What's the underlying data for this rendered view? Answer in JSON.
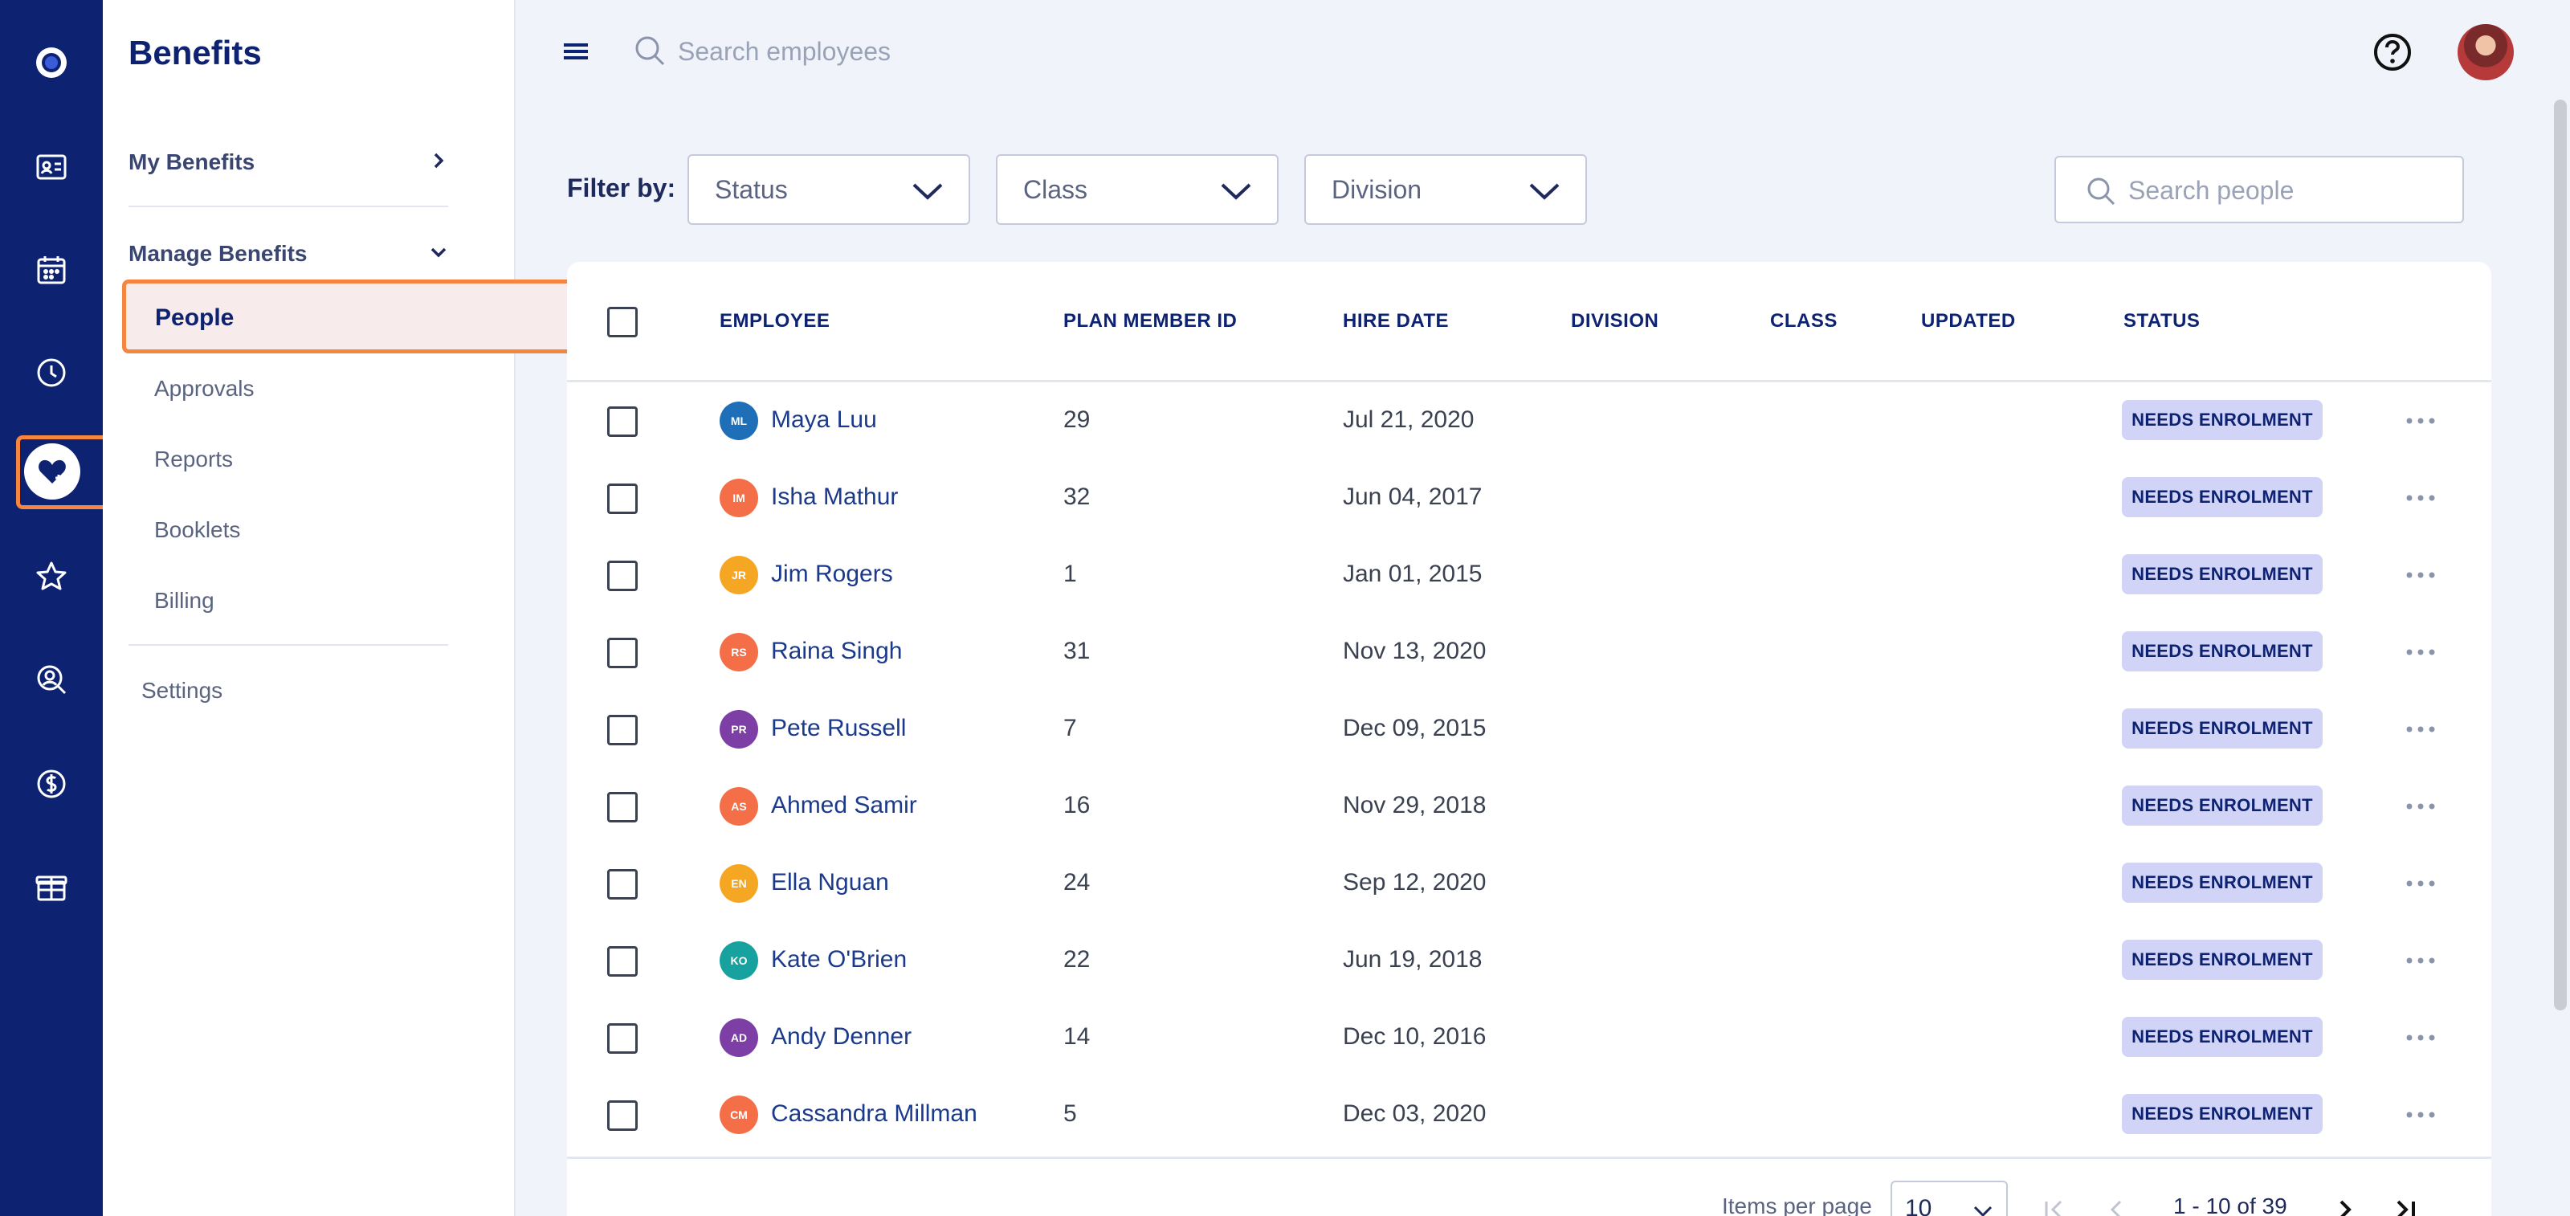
{
  "sidebar": {
    "title": "Benefits",
    "my_benefits": "My Benefits",
    "manage_benefits": "Manage Benefits",
    "items": [
      {
        "label": "People",
        "active": true
      },
      {
        "label": "Approvals"
      },
      {
        "label": "Reports"
      },
      {
        "label": "Booklets"
      },
      {
        "label": "Billing"
      }
    ],
    "settings": "Settings"
  },
  "rail": {
    "icons": [
      "logo-icon",
      "id-card-icon",
      "calendar-icon",
      "clock-icon",
      "heart-benefits-icon",
      "star-badge-icon",
      "search-person-icon",
      "dollar-icon",
      "gift-box-icon"
    ],
    "active": "heart-benefits-icon"
  },
  "topbar": {
    "search_placeholder": "Search employees"
  },
  "filters": {
    "label": "Filter by:",
    "status": "Status",
    "class": "Class",
    "division": "Division",
    "search_placeholder": "Search people"
  },
  "table": {
    "columns": [
      "EMPLOYEE",
      "PLAN MEMBER ID",
      "HIRE DATE",
      "DIVISION",
      "CLASS",
      "UPDATED",
      "STATUS"
    ],
    "rows": [
      {
        "initials": "ML",
        "name": "Maya Luu",
        "id": "29",
        "hire": "Jul 21, 2020",
        "status": "NEEDS ENROLMENT",
        "color": "#1e6fb8"
      },
      {
        "initials": "IM",
        "name": "Isha Mathur",
        "id": "32",
        "hire": "Jun 04, 2017",
        "status": "NEEDS ENROLMENT",
        "color": "#f46f48"
      },
      {
        "initials": "JR",
        "name": "Jim Rogers",
        "id": "1",
        "hire": "Jan 01, 2015",
        "status": "NEEDS ENROLMENT",
        "color": "#f5a623"
      },
      {
        "initials": "RS",
        "name": "Raina Singh",
        "id": "31",
        "hire": "Nov 13, 2020",
        "status": "NEEDS ENROLMENT",
        "color": "#f46f48"
      },
      {
        "initials": "PR",
        "name": "Pete Russell",
        "id": "7",
        "hire": "Dec 09, 2015",
        "status": "NEEDS ENROLMENT",
        "color": "#7d3fa6"
      },
      {
        "initials": "AS",
        "name": "Ahmed Samir",
        "id": "16",
        "hire": "Nov 29, 2018",
        "status": "NEEDS ENROLMENT",
        "color": "#f46f48"
      },
      {
        "initials": "EN",
        "name": "Ella Nguan",
        "id": "24",
        "hire": "Sep 12, 2020",
        "status": "NEEDS ENROLMENT",
        "color": "#f5a623"
      },
      {
        "initials": "KO",
        "name": "Kate O'Brien",
        "id": "22",
        "hire": "Jun 19, 2018",
        "status": "NEEDS ENROLMENT",
        "color": "#17a2a0"
      },
      {
        "initials": "AD",
        "name": "Andy Denner",
        "id": "14",
        "hire": "Dec 10, 2016",
        "status": "NEEDS ENROLMENT",
        "color": "#7d3fa6"
      },
      {
        "initials": "CM",
        "name": "Cassandra Millman",
        "id": "5",
        "hire": "Dec 03, 2020",
        "status": "NEEDS ENROLMENT",
        "color": "#f46f48"
      }
    ]
  },
  "pagination": {
    "items_per_page_label": "Items per page",
    "items_per_page": "10",
    "range": "1 - 10 of 39"
  },
  "colors": {
    "rail": "#0d2372",
    "accent": "#f5853f",
    "badge": "#d1d4f6"
  }
}
